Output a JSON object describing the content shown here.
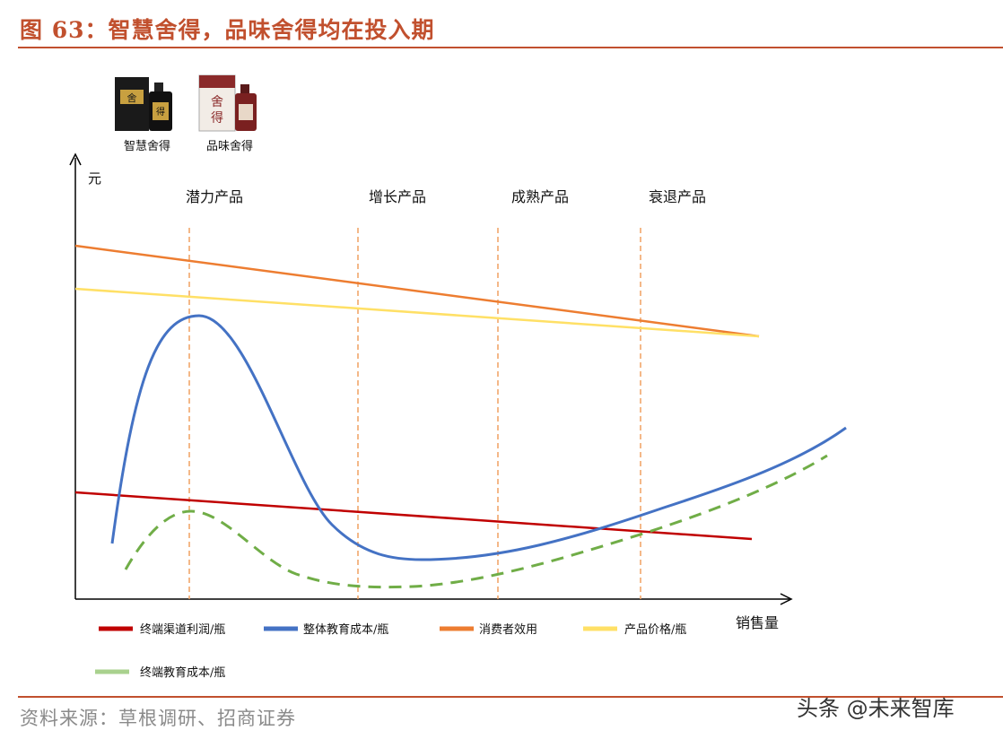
{
  "figure_title": "图 63：智慧舍得，品味舍得均在投入期",
  "source_note": "资料来源：草根调研、招商证券",
  "watermark": "头条 @未来智库",
  "products": [
    {
      "label": "智慧舍得",
      "box_color": "#1a1a1a",
      "accent": "#c8a040",
      "glyph": "舍得"
    },
    {
      "label": "品味舍得",
      "box_color": "#f2ece6",
      "accent": "#8b2a2a",
      "glyph": "舍得"
    }
  ],
  "chart_data": {
    "type": "line",
    "xlabel": "销售量",
    "ylabel": "元",
    "stages": [
      "潜力产品",
      "增长产品",
      "成熟产品",
      "衰退产品"
    ],
    "series": [
      {
        "name": "终端渠道利润/瓶",
        "color": "#c00000",
        "style": "solid"
      },
      {
        "name": "整体教育成本/瓶",
        "color": "#4472c4",
        "style": "solid"
      },
      {
        "name": "消费者效用",
        "color": "#ed7d31",
        "style": "solid"
      },
      {
        "name": "产品价格/瓶",
        "color": "#ffe066",
        "style": "solid"
      },
      {
        "name": "终端教育成本/瓶",
        "color": "#70ad47",
        "style": "dashed"
      }
    ]
  }
}
